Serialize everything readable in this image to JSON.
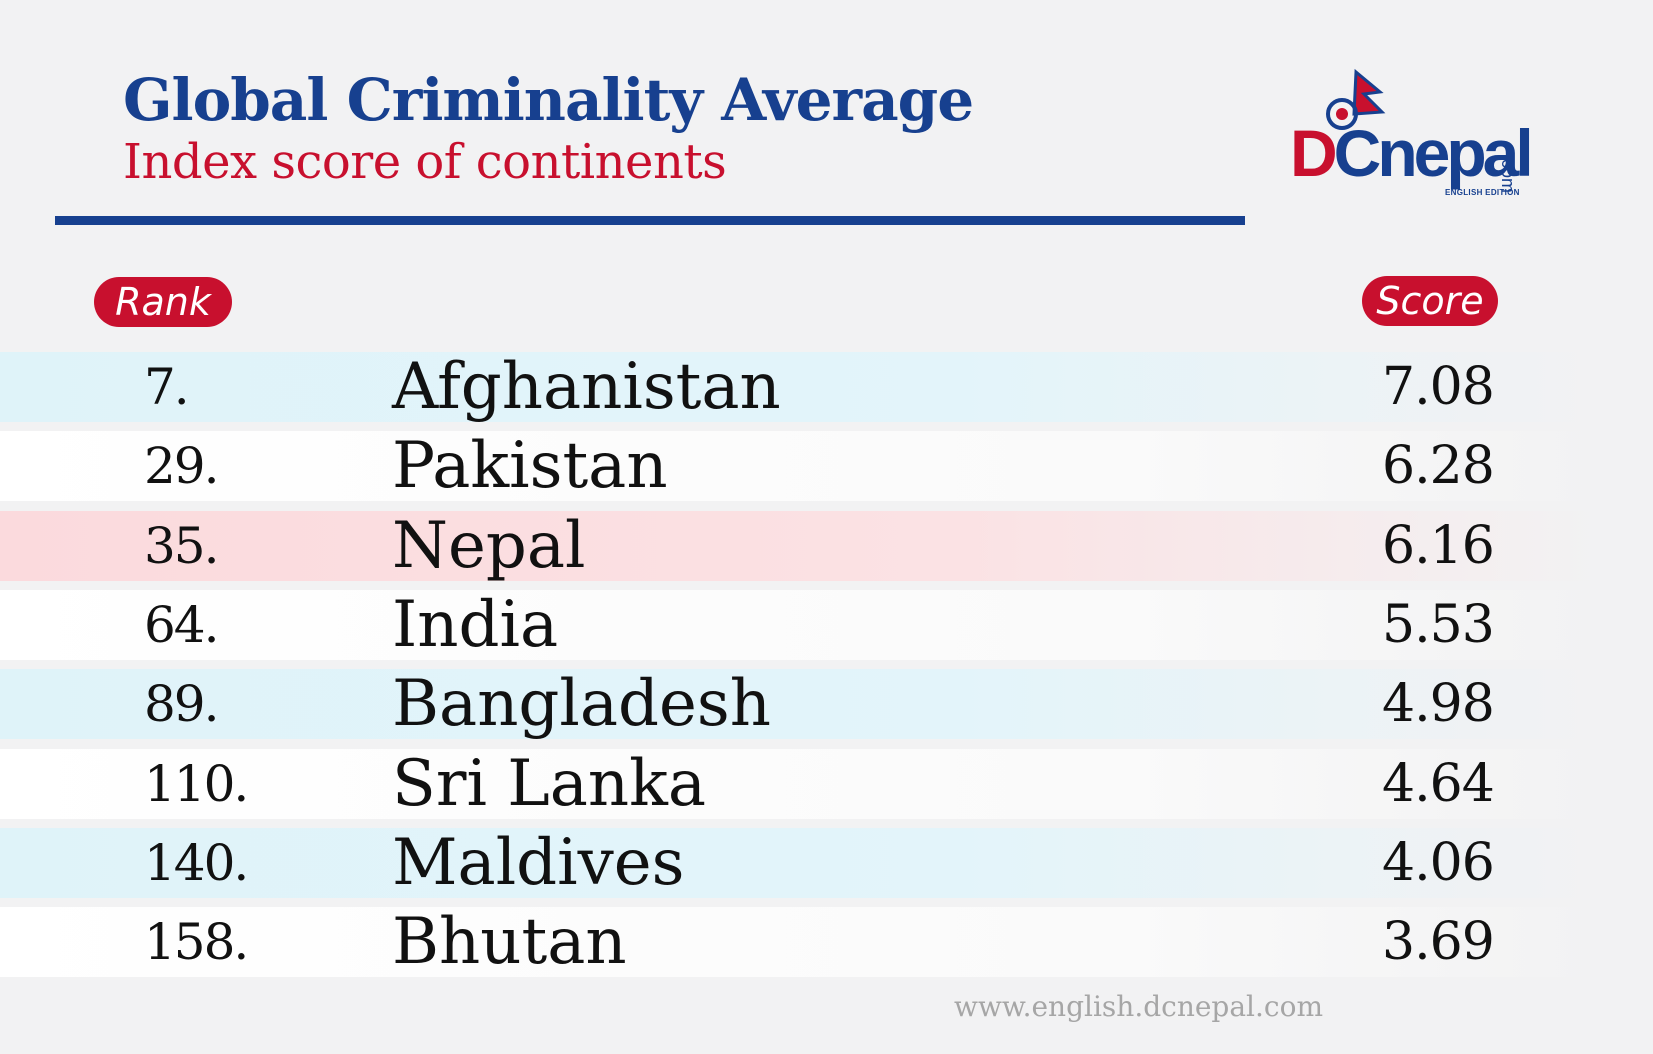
{
  "header": {
    "title": "Global Criminality Average",
    "subtitle": "Index score of continents"
  },
  "logo": {
    "brand_d": "D",
    "brand_rest": "Cnepal",
    "edition": "ENGLISH EDITION",
    "domain_suffix": ".com"
  },
  "table_headers": {
    "rank": "Rank",
    "score": "Score"
  },
  "chart_data": {
    "type": "table",
    "title": "Global Criminality Average",
    "subtitle": "Index score of continents",
    "columns": [
      "Rank",
      "",
      "Score"
    ],
    "rows": [
      {
        "rank": "7.",
        "country": "Afghanistan",
        "score": "7.08",
        "highlight": "blue"
      },
      {
        "rank": "29.",
        "country": "Pakistan",
        "score": "6.28",
        "highlight": "white"
      },
      {
        "rank": "35.",
        "country": "Nepal",
        "score": "6.16",
        "highlight": "red"
      },
      {
        "rank": "64.",
        "country": "India",
        "score": "5.53",
        "highlight": "white"
      },
      {
        "rank": "89.",
        "country": "Bangladesh",
        "score": "4.98",
        "highlight": "blue"
      },
      {
        "rank": "110.",
        "country": "Sri Lanka",
        "score": "4.64",
        "highlight": "white"
      },
      {
        "rank": "140.",
        "country": "Maldives",
        "score": "4.06",
        "highlight": "blue"
      },
      {
        "rank": "158.",
        "country": "Bhutan",
        "score": "3.69",
        "highlight": "white"
      }
    ]
  },
  "footer": {
    "url": "www.english.dcnepal.com"
  },
  "colors": {
    "brand_blue": "#17408f",
    "brand_red": "#c8102e",
    "row_blue": "#dff3f9",
    "row_red": "#fbdadd"
  }
}
